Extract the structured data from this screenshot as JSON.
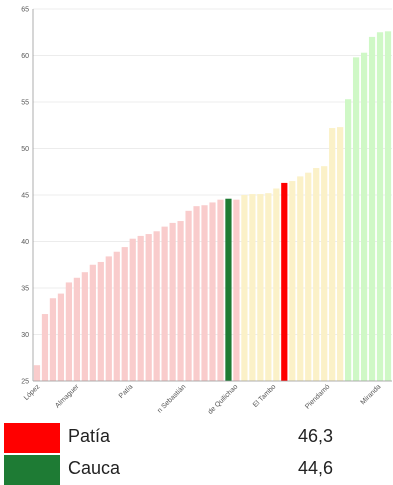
{
  "chart_data": {
    "type": "bar",
    "ylim": [
      25,
      65
    ],
    "yticks": [
      25,
      30,
      35,
      40,
      45,
      50,
      55,
      60,
      65
    ],
    "grid": "horizontal",
    "x_tick_labels": [
      "López",
      "Almaguer",
      "Patía",
      "n Sebastián",
      "de Quilichao",
      "El Tambo",
      "Piendamó",
      "Miranda"
    ],
    "values": [
      26.7,
      32.2,
      33.9,
      34.4,
      35.6,
      36.1,
      36.7,
      37.5,
      37.8,
      38.4,
      38.9,
      39.4,
      40.3,
      40.6,
      40.8,
      41.1,
      41.6,
      42.0,
      42.2,
      43.3,
      43.8,
      43.9,
      44.2,
      44.5,
      44.6,
      44.5,
      45.0,
      45.1,
      45.1,
      45.2,
      45.7,
      46.3,
      46.5,
      47.0,
      47.4,
      47.9,
      48.1,
      52.2,
      52.3,
      55.3,
      59.8,
      60.3,
      62.0,
      62.5,
      62.6
    ],
    "colors": [
      "pink",
      "pink",
      "pink",
      "pink",
      "pink",
      "pink",
      "pink",
      "pink",
      "pink",
      "pink",
      "pink",
      "pink",
      "pink",
      "pink",
      "pink",
      "pink",
      "pink",
      "pink",
      "pink",
      "pink",
      "pink",
      "pink",
      "pink",
      "pink",
      "cauca",
      "pink",
      "yellow",
      "yellow",
      "yellow",
      "yellow",
      "yellow",
      "patia",
      "yellow",
      "yellow",
      "yellow",
      "yellow",
      "yellow",
      "yellow",
      "yellow",
      "green",
      "green",
      "green",
      "green",
      "green",
      "green"
    ],
    "palette": {
      "pink": "#f9cccc",
      "yellow": "#fbf1c8",
      "green": "#cff8c6",
      "patia": "#ff0000",
      "cauca": "#1e7b34"
    }
  },
  "legend": [
    {
      "name": "Patía",
      "value": "46,3",
      "color": "#ff0000"
    },
    {
      "name": "Cauca",
      "value": "44,6",
      "color": "#1e7b34"
    }
  ]
}
